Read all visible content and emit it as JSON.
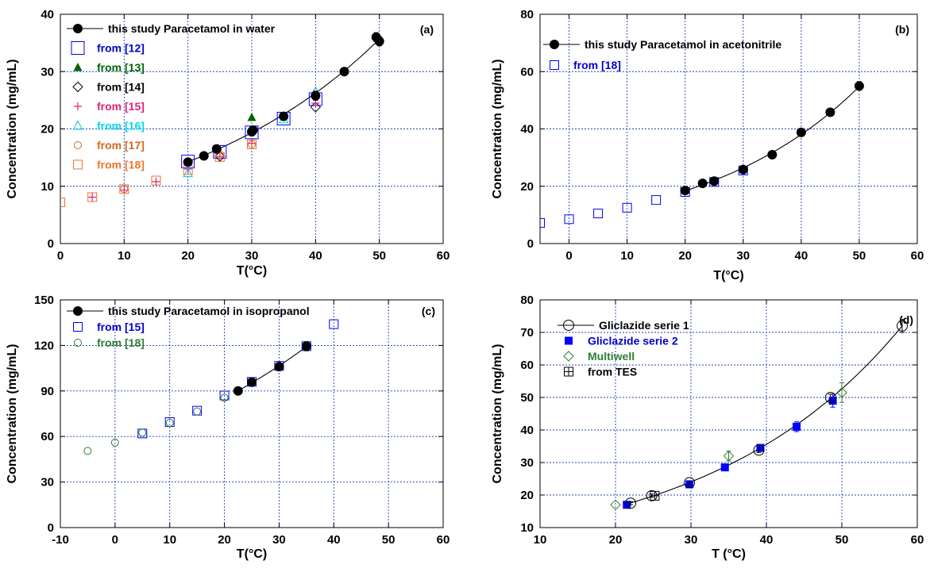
{
  "chart_data": [
    {
      "type": "scatter",
      "panel_label": "(a)",
      "xlabel": "T(°C)",
      "ylabel": "Concentration (mg/mL)",
      "xlim": [
        0,
        60
      ],
      "ylim": [
        0,
        40
      ],
      "xticks": [
        "0",
        "10",
        "20",
        "30",
        "40",
        "50",
        "60"
      ],
      "yticks": [
        "0",
        "10",
        "20",
        "30",
        "40"
      ],
      "grid": true,
      "legend_position": "top-left",
      "series": [
        {
          "name": "this study Paracetamol in water",
          "marker": "filled-circle",
          "color": "#000000",
          "fit_line": true,
          "x": [
            20,
            22.5,
            24.5,
            30,
            30.2,
            35,
            40,
            44.5,
            49.5,
            50
          ],
          "y": [
            14.2,
            15.3,
            16.5,
            19.5,
            19.8,
            22.2,
            25.8,
            30.0,
            36.0,
            35.3
          ],
          "err": [
            0.5,
            0.3,
            0.4,
            0.6,
            0.5,
            0.5,
            0.8,
            0.6,
            0.8,
            0.8
          ]
        },
        {
          "name": "from [12]",
          "marker": "open-square-large",
          "color": "#0000ff",
          "label_color": "#0000cc",
          "x": [
            20,
            25,
            30,
            35,
            40
          ],
          "y": [
            14.3,
            16.0,
            19.4,
            21.8,
            25.2
          ]
        },
        {
          "name": "from [13]",
          "marker": "filled-triangle",
          "color": "#006400",
          "label_color": "#006400",
          "x": [
            30
          ],
          "y": [
            22.0
          ]
        },
        {
          "name": "from [14]",
          "marker": "open-diamond",
          "color": "#000000",
          "label_color": "#000000",
          "x": [
            25,
            40
          ],
          "y": [
            15.2,
            23.8
          ]
        },
        {
          "name": "from [15]",
          "marker": "plus",
          "color": "#e0207a",
          "label_color": "#e0207a",
          "x": [
            5,
            10,
            15,
            20,
            25,
            30,
            40
          ],
          "y": [
            8.1,
            9.3,
            10.8,
            13.0,
            15.2,
            17.5,
            24.5
          ]
        },
        {
          "name": "from [16]",
          "marker": "open-triangle",
          "color": "#00c8e0",
          "label_color": "#00d8f0",
          "x": [
            20,
            35,
            40
          ],
          "y": [
            12.3,
            21.7,
            26.5
          ]
        },
        {
          "name": "from [17]",
          "marker": "open-circle",
          "color": "#d2691e",
          "label_color": "#d2691e",
          "x": [
            10,
            25,
            30
          ],
          "y": [
            9.5,
            15.5,
            17.3
          ]
        },
        {
          "name": "from [18]",
          "marker": "open-square",
          "color": "#ee7530",
          "label_color": "#ee7530",
          "x": [
            0,
            5,
            10,
            15,
            20,
            25,
            30
          ],
          "y": [
            7.2,
            8.1,
            9.5,
            11.0,
            12.8,
            15.1,
            17.3
          ]
        }
      ]
    },
    {
      "type": "scatter",
      "panel_label": "(b)",
      "xlabel": "T(°C)",
      "ylabel": "Concentration (mg/mL)",
      "xlim": [
        -5,
        60
      ],
      "ylim": [
        0,
        80
      ],
      "xticks": [
        "0",
        "10",
        "20",
        "30",
        "40",
        "50",
        "60"
      ],
      "yticks": [
        "0",
        "20",
        "40",
        "60",
        "80"
      ],
      "grid": true,
      "legend_position": "top-left",
      "series": [
        {
          "name": "this study Paracetamol in acetonitrile",
          "marker": "filled-circle",
          "color": "#000000",
          "label_color": "#000000",
          "fit_line": true,
          "x": [
            20,
            23,
            25,
            30,
            35,
            40,
            45,
            50
          ],
          "y": [
            18.5,
            21.0,
            21.8,
            25.8,
            31.0,
            38.8,
            45.8,
            55.0
          ],
          "err": [
            0.6,
            0.4,
            0.5,
            0.8,
            0.6,
            0.6,
            0.8,
            1.5
          ]
        },
        {
          "name": "from [18]",
          "marker": "open-square",
          "color": "#0000ff",
          "label_color": "#0000cc",
          "x": [
            -5,
            0,
            5,
            10,
            15,
            20,
            25,
            30
          ],
          "y": [
            7.2,
            8.5,
            10.5,
            12.5,
            15.2,
            18.0,
            21.5,
            25.5
          ]
        }
      ]
    },
    {
      "type": "scatter",
      "panel_label": "(c)",
      "xlabel": "T(°C)",
      "ylabel": "Concentration (mg/mL)",
      "xlim": [
        -10,
        60
      ],
      "ylim": [
        0,
        150
      ],
      "xticks": [
        "-10",
        "0",
        "10",
        "20",
        "30",
        "40",
        "50",
        "60"
      ],
      "yticks": [
        "0",
        "30",
        "60",
        "90",
        "120",
        "150"
      ],
      "grid": true,
      "legend_position": "top-left",
      "series": [
        {
          "name": "this study Paracetamol in isopropanol",
          "marker": "filled-circle",
          "color": "#000000",
          "label_color": "#000000",
          "fit_line": true,
          "x": [
            22.5,
            25,
            30,
            35
          ],
          "y": [
            90.0,
            95.8,
            106.0,
            119.5
          ],
          "err": [
            1.0,
            1.2,
            2.0,
            3.0
          ]
        },
        {
          "name": "from [15]",
          "marker": "open-square",
          "color": "#0000ff",
          "label_color": "#0000cc",
          "x": [
            5,
            10,
            15,
            20,
            25,
            30,
            35,
            40
          ],
          "y": [
            62.0,
            69.5,
            77.0,
            87.0,
            96.0,
            106.5,
            119.5,
            134.0
          ]
        },
        {
          "name": "from [18]",
          "marker": "open-circle",
          "color": "#2e7d32",
          "label_color": "#2e7d32",
          "x": [
            -5,
            0,
            5,
            10,
            15,
            20,
            25,
            30
          ],
          "y": [
            50.5,
            56.0,
            62.5,
            69.0,
            76.5,
            85.5,
            96.5,
            105.5
          ]
        }
      ]
    },
    {
      "type": "scatter",
      "panel_label": "(d)",
      "xlabel": "T (°C)",
      "ylabel": "Concentration (mg/mL)",
      "xlim": [
        10,
        60
      ],
      "ylim": [
        10,
        80
      ],
      "xticks": [
        "10",
        "20",
        "30",
        "40",
        "50",
        "60"
      ],
      "yticks": [
        "10",
        "20",
        "30",
        "40",
        "50",
        "60",
        "70",
        "80"
      ],
      "grid": true,
      "legend_position": "top-left",
      "series": [
        {
          "name": "Gliclazide serie 1",
          "marker": "open-circle-large",
          "color": "#000000",
          "label_color": "#000000",
          "fit_line": true,
          "x": [
            22,
            24.8,
            29.8,
            39,
            48.5,
            58
          ],
          "y": [
            17.5,
            19.8,
            23.8,
            33.8,
            50.0,
            72.0
          ],
          "err": [
            0.5,
            0.5,
            0.6,
            0.7,
            1.0,
            2.0
          ]
        },
        {
          "name": "Gliclazide serie 2",
          "marker": "filled-square",
          "color": "#0000ff",
          "label_color": "#0000cc",
          "x": [
            21.5,
            29.8,
            34.5,
            39.2,
            44,
            48.8
          ],
          "y": [
            17.0,
            23.3,
            28.5,
            34.5,
            41.0,
            49.0
          ],
          "err": [
            0.4,
            0.5,
            0.5,
            0.7,
            1.5,
            2.0
          ]
        },
        {
          "name": "Multiwell",
          "marker": "open-diamond",
          "color": "#2e7d32",
          "label_color": "#2e7d32",
          "x": [
            20,
            35,
            50
          ],
          "y": [
            17.0,
            32.0,
            51.5
          ],
          "err": [
            0,
            1.5,
            3.0
          ]
        },
        {
          "name": "from TES",
          "marker": "boxed-plus",
          "color": "#000000",
          "label_color": "#000000",
          "x": [
            25.2
          ],
          "y": [
            19.8
          ]
        }
      ]
    }
  ]
}
